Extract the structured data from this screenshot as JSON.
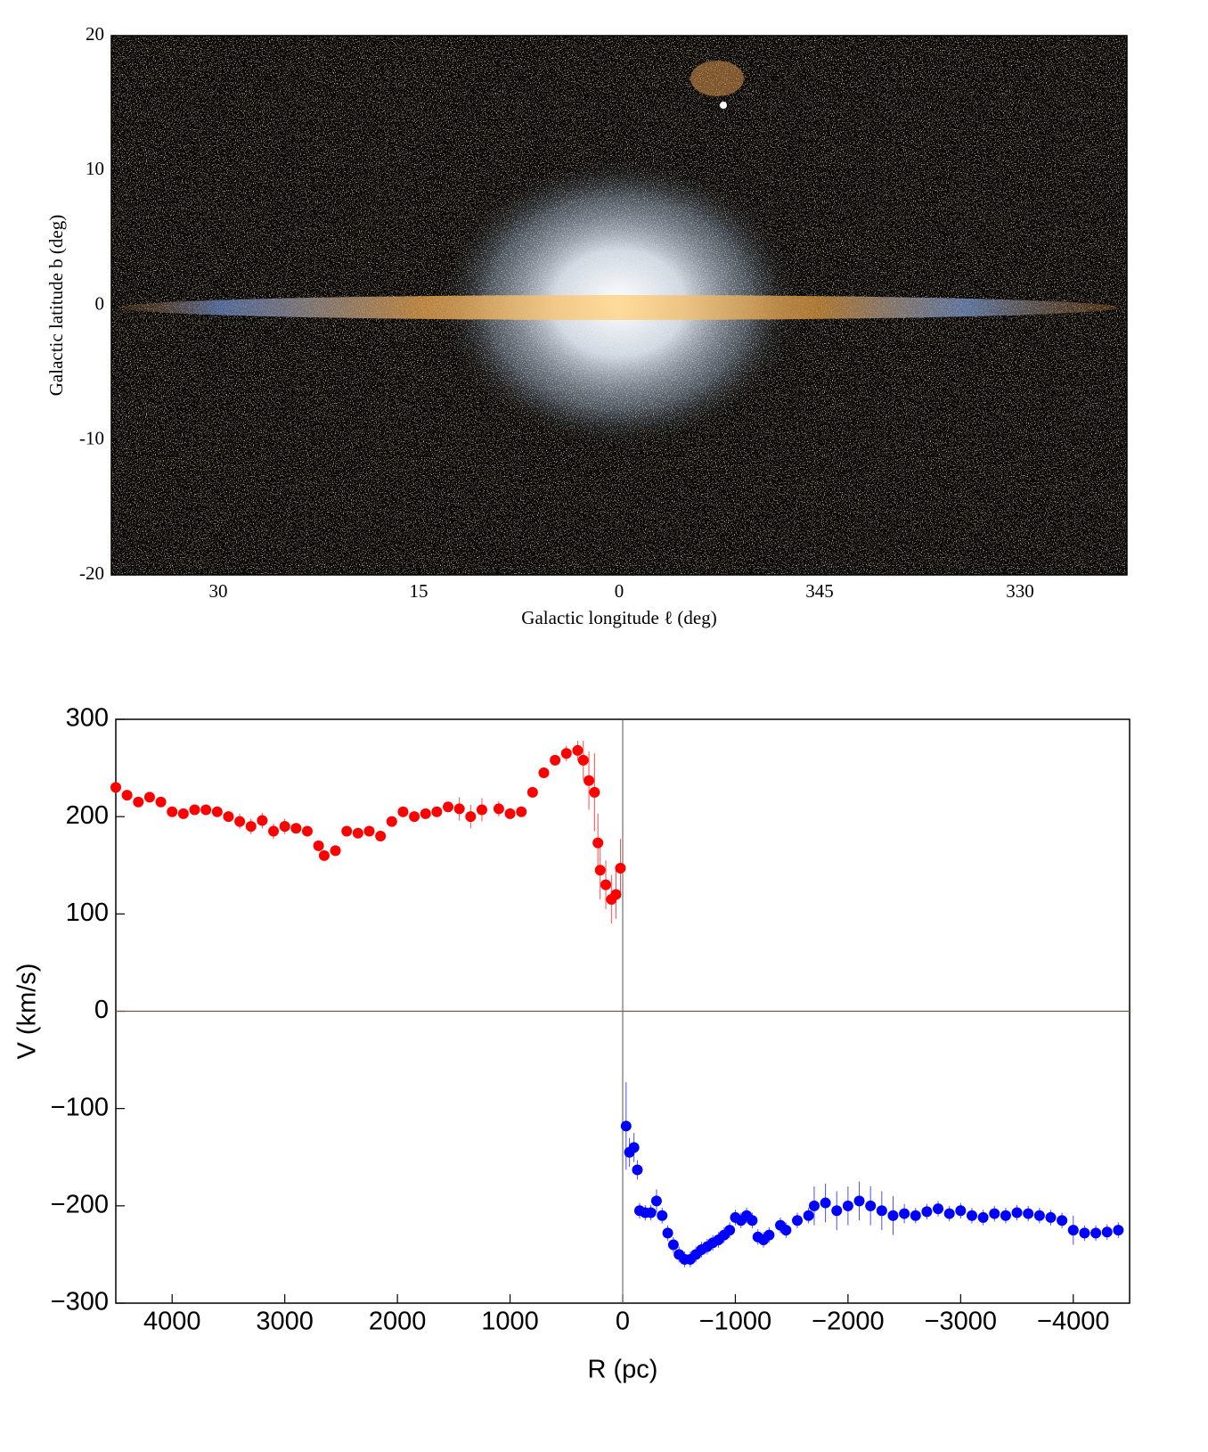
{
  "chart_data": [
    {
      "type": "image",
      "x_label": "Galactic longitude ℓ (deg)",
      "y_label": "Galactic latitude b (deg)",
      "xlim": [
        38,
        -38
      ],
      "xticks": [
        30,
        15,
        0,
        {
          "value": -15,
          "label": "345"
        },
        {
          "value": -30,
          "label": "330"
        }
      ],
      "ylim": [
        -20,
        20
      ],
      "yticks": [
        -20,
        -10,
        0,
        10,
        20
      ]
    },
    {
      "type": "errorbar",
      "x_label": "R (pc)",
      "y_label": "V (km/s)",
      "xlim": [
        4500,
        -4500
      ],
      "xticks": [
        4000,
        3000,
        2000,
        1000,
        0,
        {
          "value": -1000,
          "label": "−1000"
        },
        {
          "value": -2000,
          "label": "−2000"
        },
        {
          "value": -3000,
          "label": "−3000"
        },
        {
          "value": -4000,
          "label": "−4000"
        }
      ],
      "ylim": [
        -300,
        300
      ],
      "yticks": [
        300,
        200,
        100,
        0,
        {
          "value": -100,
          "label": "−100"
        },
        {
          "value": -200,
          "label": "−200"
        },
        {
          "value": -300,
          "label": "−300"
        }
      ],
      "series": [
        {
          "color": "#ff0000",
          "x": [
            4500,
            4400,
            4300,
            4200,
            4100,
            4000,
            3900,
            3800,
            3700,
            3600,
            3500,
            3400,
            3300,
            3200,
            3100,
            3000,
            2900,
            2800,
            2700,
            2650,
            2550,
            2450,
            2350,
            2250,
            2150,
            2050,
            1950,
            1850,
            1750,
            1650,
            1550,
            1450,
            1350,
            1250,
            1100,
            1000,
            900,
            800,
            700,
            600,
            500,
            400,
            350,
            300,
            250,
            220,
            200,
            150,
            100,
            60,
            20
          ],
          "values": [
            230,
            222,
            215,
            220,
            215,
            205,
            203,
            207,
            207,
            205,
            200,
            195,
            190,
            196,
            185,
            190,
            188,
            185,
            170,
            160,
            165,
            185,
            183,
            185,
            180,
            195,
            205,
            200,
            203,
            205,
            210,
            208,
            200,
            207,
            208,
            203,
            205,
            225,
            245,
            258,
            265,
            268,
            258,
            237,
            225,
            173,
            145,
            130,
            115,
            120,
            147
          ],
          "errors": [
            5,
            5,
            5,
            5,
            5,
            5,
            5,
            5,
            5,
            5,
            5,
            8,
            8,
            8,
            8,
            8,
            5,
            5,
            5,
            5,
            5,
            5,
            5,
            5,
            5,
            5,
            5,
            5,
            5,
            5,
            5,
            12,
            12,
            12,
            8,
            5,
            5,
            5,
            5,
            5,
            8,
            10,
            20,
            30,
            40,
            30,
            30,
            25,
            25,
            25,
            30
          ]
        },
        {
          "color": "#0000ff",
          "x": [
            -30,
            -60,
            -100,
            -130,
            -150,
            -200,
            -250,
            -300,
            -350,
            -400,
            -450,
            -500,
            -550,
            -600,
            -650,
            -700,
            -750,
            -800,
            -850,
            -900,
            -950,
            -1000,
            -1050,
            -1100,
            -1150,
            -1200,
            -1250,
            -1300,
            -1400,
            -1450,
            -1550,
            -1650,
            -1700,
            -1800,
            -1900,
            -2000,
            -2100,
            -2200,
            -2300,
            -2400,
            -2500,
            -2600,
            -2700,
            -2800,
            -2900,
            -3000,
            -3100,
            -3200,
            -3300,
            -3400,
            -3500,
            -3600,
            -3700,
            -3800,
            -3900,
            -4000,
            -4100,
            -4200,
            -4300,
            -4400
          ],
          "values": [
            -118,
            -145,
            -140,
            -163,
            -205,
            -207,
            -207,
            -195,
            -210,
            -228,
            -240,
            -250,
            -255,
            -255,
            -250,
            -245,
            -242,
            -238,
            -235,
            -230,
            -225,
            -212,
            -215,
            -210,
            -215,
            -232,
            -235,
            -230,
            -220,
            -225,
            -215,
            -210,
            -200,
            -197,
            -205,
            -200,
            -195,
            -200,
            -205,
            -210,
            -208,
            -210,
            -206,
            -203,
            -208,
            -205,
            -210,
            -212,
            -208,
            -210,
            -207,
            -208,
            -210,
            -212,
            -215,
            -225,
            -228,
            -228,
            -227,
            -225
          ],
          "errors": [
            45,
            15,
            15,
            10,
            8,
            8,
            8,
            12,
            8,
            8,
            8,
            8,
            8,
            8,
            8,
            8,
            8,
            8,
            8,
            8,
            8,
            8,
            8,
            8,
            8,
            8,
            8,
            8,
            8,
            8,
            8,
            8,
            20,
            20,
            20,
            20,
            20,
            20,
            20,
            20,
            10,
            8,
            8,
            8,
            8,
            8,
            8,
            8,
            8,
            8,
            8,
            8,
            8,
            8,
            8,
            15,
            8,
            8,
            8,
            8
          ]
        }
      ]
    }
  ]
}
